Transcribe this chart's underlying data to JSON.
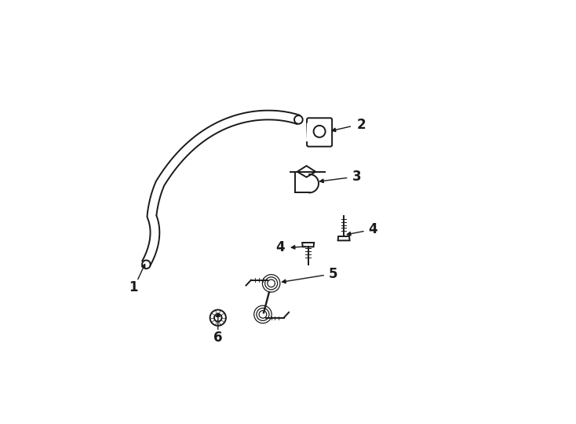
{
  "bg_color": "#ffffff",
  "line_color": "#1a1a1a",
  "lw": 1.4,
  "fig_width": 7.34,
  "fig_height": 5.4,
  "dpi": 100
}
